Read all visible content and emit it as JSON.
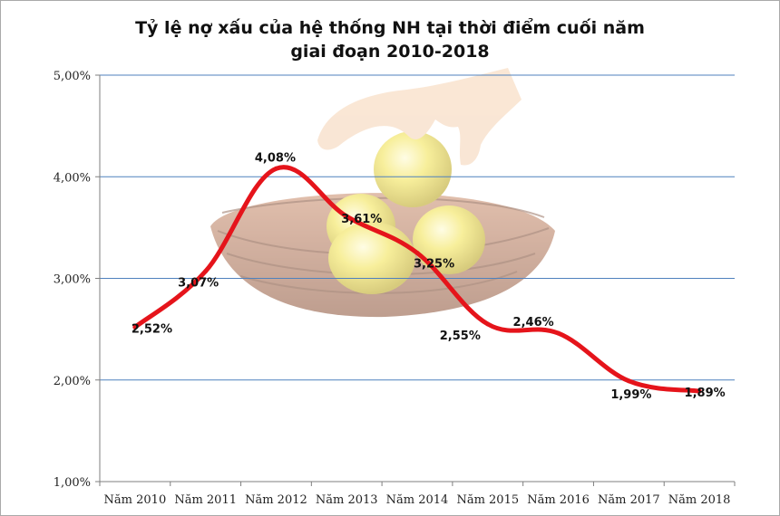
{
  "chart_data": {
    "type": "line",
    "title_line1": "Tỷ lệ nợ xấu của hệ thống NH tại thời điểm cuối năm",
    "title_line2": "giai đoạn 2010-2018",
    "categories": [
      "Năm 2010",
      "Năm 2011",
      "Năm 2012",
      "Năm 2013",
      "Năm 2014",
      "Năm 2015",
      "Năm 2016",
      "Năm 2017",
      "Năm 2018"
    ],
    "values": [
      2.52,
      3.07,
      4.08,
      3.61,
      3.25,
      2.55,
      2.46,
      1.99,
      1.89
    ],
    "data_labels": [
      "2,52%",
      "3,07%",
      "4,08%",
      "3,61%",
      "3,25%",
      "2,55%",
      "2,46%",
      "1,99%",
      "1,89%"
    ],
    "yticks": [
      1,
      2,
      3,
      4,
      5
    ],
    "ytick_labels": [
      "1,00%",
      "2,00%",
      "3,00%",
      "4,00%",
      "5,00%"
    ],
    "ylim": [
      1,
      5
    ],
    "grid": true,
    "legend": "none",
    "line_color": "#e5141b",
    "grid_color": "#4f81bd",
    "background_illustration": "hand-picking-golden-eggs-from-nest"
  }
}
